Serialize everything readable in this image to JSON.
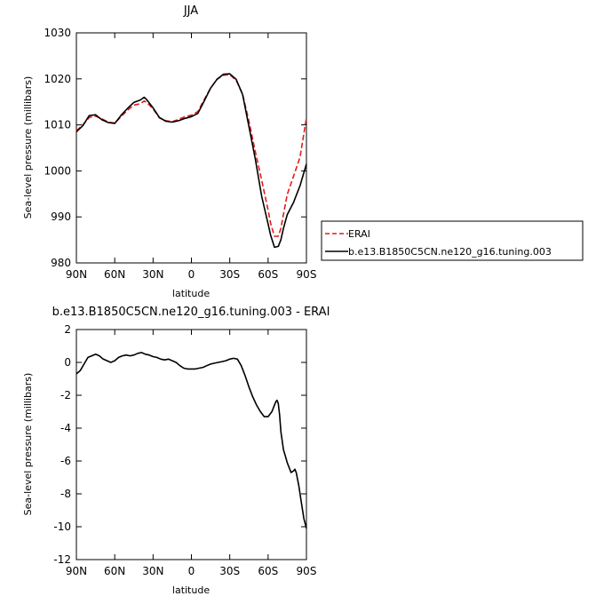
{
  "chart_data": [
    {
      "type": "line",
      "title": "JJA",
      "xlabel": "latitude",
      "ylabel": "Sea-level pressure (millibars)",
      "xlim": [
        90,
        -90
      ],
      "ylim": [
        980,
        1030
      ],
      "xticks": [
        90,
        60,
        30,
        0,
        -30,
        -60,
        -90
      ],
      "xtick_labels": [
        "90N",
        "60N",
        "30N",
        "0",
        "30S",
        "60S",
        "90S"
      ],
      "yticks": [
        980,
        990,
        1000,
        1010,
        1020,
        1030
      ],
      "ytick_labels": [
        "980",
        "990",
        "1000",
        "1010",
        "1020",
        "1030"
      ],
      "legend": {
        "placement": "right",
        "entries": [
          "ERAI",
          "b.e13.B1850C5CN.ne120_g16.tuning.003"
        ]
      },
      "series": [
        {
          "name": "ERAI",
          "color": "#e41a1c",
          "dash": "dashed",
          "x": [
            90,
            85,
            80,
            75,
            70,
            65,
            60,
            55,
            50,
            45,
            40,
            37,
            35,
            30,
            25,
            20,
            15,
            10,
            5,
            0,
            -5,
            -10,
            -15,
            -20,
            -25,
            -30,
            -35,
            -40,
            -45,
            -50,
            -55,
            -60,
            -62,
            -65,
            -68,
            -70,
            -72,
            -75,
            -80,
            -85,
            -90
          ],
          "y": [
            1008.7,
            1010,
            1011.6,
            1011.9,
            1011.3,
            1010.6,
            1010.4,
            1011.8,
            1013.2,
            1014.3,
            1014.6,
            1015.2,
            1014.9,
            1013.5,
            1011.5,
            1010.9,
            1010.7,
            1011.2,
            1011.8,
            1012.1,
            1012.9,
            1015.5,
            1018,
            1019.9,
            1020.8,
            1020.9,
            1019.7,
            1016.7,
            1010.8,
            1004.2,
            998,
            991.5,
            988.6,
            985.8,
            985.8,
            987.5,
            990.5,
            994.9,
            998.9,
            1003,
            1011.5
          ]
        },
        {
          "name": "b.e13.B1850C5CN.ne120_g16.tuning.003",
          "color": "#000000",
          "dash": "solid",
          "x": [
            90,
            85,
            80,
            75,
            70,
            65,
            60,
            55,
            50,
            45,
            40,
            37,
            35,
            30,
            25,
            20,
            15,
            10,
            5,
            0,
            -5,
            -10,
            -15,
            -20,
            -25,
            -30,
            -35,
            -40,
            -45,
            -50,
            -55,
            -60,
            -62,
            -65,
            -68,
            -70,
            -72,
            -75,
            -80,
            -85,
            -90
          ],
          "y": [
            1008.5,
            1009.8,
            1012,
            1012.2,
            1011.1,
            1010.5,
            1010.3,
            1012.1,
            1013.6,
            1014.9,
            1015.4,
            1016,
            1015.5,
            1013.7,
            1011.6,
            1010.8,
            1010.6,
            1010.9,
            1011.4,
            1011.8,
            1012.5,
            1015.2,
            1018,
            1019.9,
            1021,
            1021.1,
            1019.9,
            1016.6,
            1009.6,
            1002.6,
            994.5,
            988.5,
            986,
            983.4,
            983.6,
            985,
            987.5,
            990.5,
            993.2,
            996.8,
            1001.5
          ]
        }
      ]
    },
    {
      "type": "line",
      "title": "b.e13.B1850C5CN.ne120_g16.tuning.003 - ERAI",
      "xlabel": "latitude",
      "ylabel": "Sea-level pressure (millibars)",
      "xlim": [
        90,
        -90
      ],
      "ylim": [
        -12,
        2
      ],
      "xticks": [
        90,
        60,
        30,
        0,
        -30,
        -60,
        -90
      ],
      "xtick_labels": [
        "90N",
        "60N",
        "30N",
        "0",
        "30S",
        "60S",
        "90S"
      ],
      "yticks": [
        -12,
        -10,
        -8,
        -6,
        -4,
        -2,
        0,
        2
      ],
      "ytick_labels": [
        "-12",
        "-10",
        "-8",
        "-6",
        "-4",
        "-2",
        "0",
        "2"
      ],
      "series": [
        {
          "color": "#000000",
          "dash": "solid",
          "x": [
            90,
            87,
            84,
            81,
            78,
            75,
            72,
            69,
            66,
            63,
            60,
            57,
            54,
            51,
            48,
            45,
            42,
            39,
            36,
            33,
            30,
            27,
            24,
            21,
            18,
            15,
            12,
            9,
            6,
            3,
            0,
            -3,
            -6,
            -9,
            -12,
            -15,
            -18,
            -21,
            -24,
            -27,
            -30,
            -33,
            -36,
            -39,
            -42,
            -45,
            -48,
            -51,
            -54,
            -57,
            -60,
            -63,
            -65,
            -66,
            -67,
            -68,
            -69,
            -70,
            -72,
            -75,
            -78,
            -80,
            -81,
            -82,
            -84,
            -86,
            -88,
            -90
          ],
          "y": [
            -0.7,
            -0.5,
            -0.1,
            0.3,
            0.4,
            0.5,
            0.4,
            0.2,
            0.1,
            0,
            0.1,
            0.3,
            0.4,
            0.45,
            0.4,
            0.45,
            0.55,
            0.6,
            0.5,
            0.45,
            0.35,
            0.3,
            0.2,
            0.15,
            0.2,
            0.1,
            0,
            -0.2,
            -0.35,
            -0.4,
            -0.4,
            -0.4,
            -0.35,
            -0.3,
            -0.2,
            -0.1,
            -0.05,
            0,
            0.05,
            0.1,
            0.2,
            0.25,
            0.2,
            -0.2,
            -0.8,
            -1.5,
            -2.1,
            -2.6,
            -3.0,
            -3.3,
            -3.3,
            -3.0,
            -2.6,
            -2.4,
            -2.3,
            -2.5,
            -3.2,
            -4.2,
            -5.3,
            -6.1,
            -6.7,
            -6.6,
            -6.5,
            -6.7,
            -7.5,
            -8.5,
            -9.5,
            -10.1
          ]
        }
      ]
    }
  ]
}
